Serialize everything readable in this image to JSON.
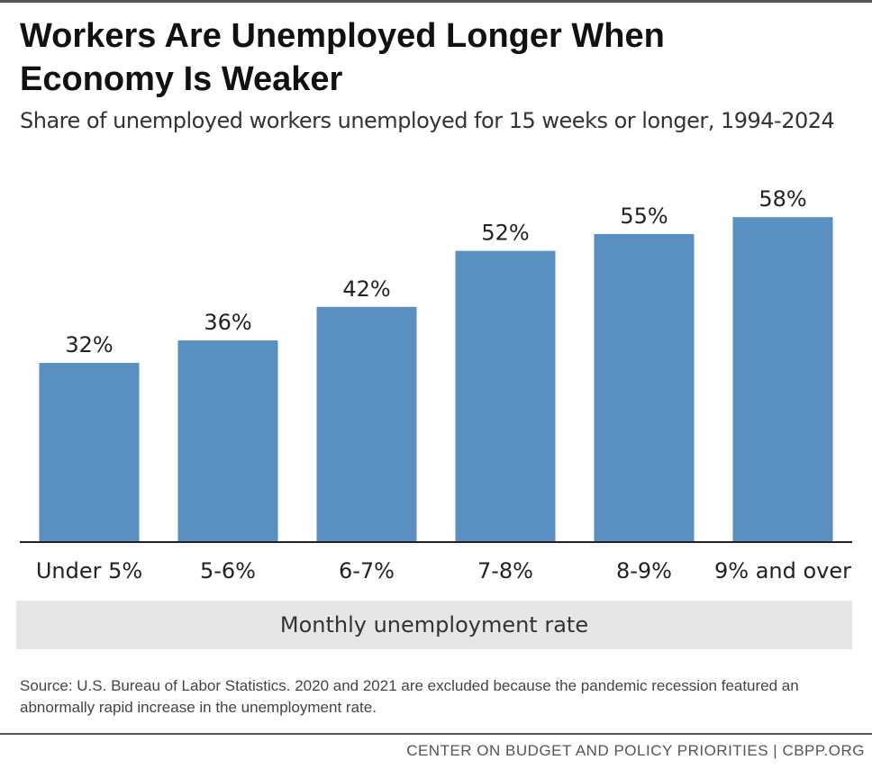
{
  "title_lines": [
    "Workers Are Unemployed Longer When",
    "Economy Is Weaker"
  ],
  "subtitle": "Share of unemployed workers unemployed for 15 weeks or longer, 1994-2024",
  "chart_data": {
    "type": "bar",
    "categories": [
      "Under 5%",
      "5-6%",
      "6-7%",
      "7-8%",
      "8-9%",
      "9% and over"
    ],
    "values": [
      32,
      36,
      42,
      52,
      55,
      58
    ],
    "value_labels": [
      "32%",
      "36%",
      "42%",
      "52%",
      "55%",
      "58%"
    ],
    "xlabel": "Monthly unemployment rate",
    "bar_color": "#5a8fc2",
    "grid": false
  },
  "source": "Source: U.S. Bureau of Labor Statistics. 2020 and 2021 are excluded because the pandemic recession featured an abnormally rapid increase in the unemployment rate.",
  "footer": "CENTER ON BUDGET AND POLICY PRIORITIES | CBPP.ORG"
}
